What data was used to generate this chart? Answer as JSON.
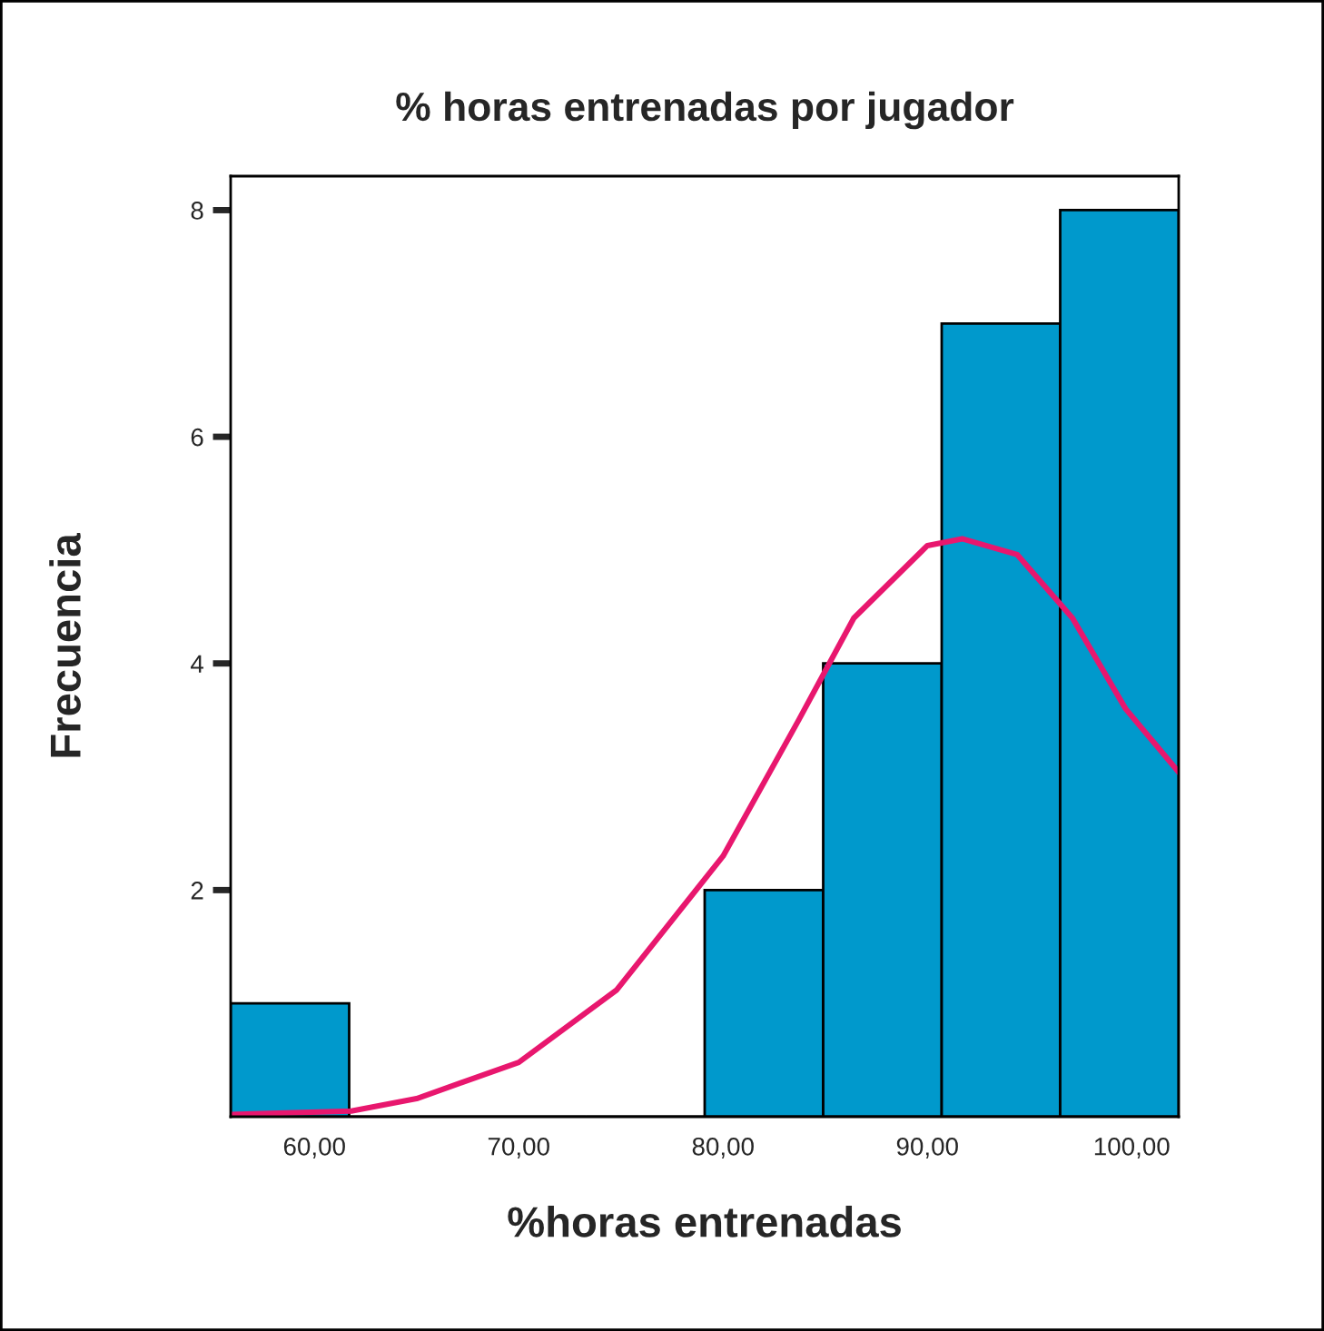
{
  "chart_data": {
    "type": "histogram",
    "title": "% horas entrenadas por jugador",
    "xlabel": "%horas entrenadas",
    "ylabel": "Frecuencia",
    "bins": [
      55.9,
      61.7,
      67.5,
      73.3,
      79.1,
      84.9,
      90.7,
      96.5,
      102.3
    ],
    "values": [
      1,
      0,
      0,
      0,
      2,
      4,
      7,
      8
    ],
    "color": "#0099cc",
    "series": [
      {
        "type": "line",
        "color": "#e8176e",
        "x": [
          55.9,
          61.8,
          65.0,
          70.0,
          74.8,
          80.0,
          83.7,
          86.4,
          90.0,
          91.7,
          94.4,
          97.1,
          99.7,
          102.3
        ],
        "values": [
          0.02,
          0.05,
          0.16,
          0.48,
          1.12,
          2.3,
          3.5,
          4.4,
          5.04,
          5.1,
          4.96,
          4.4,
          3.6,
          3.04
        ]
      }
    ],
    "xlim": [
      55.9,
      102.3
    ],
    "ylim": [
      0,
      8.3
    ],
    "xticks": [
      {
        "value": 60,
        "label": "60,00"
      },
      {
        "value": 70,
        "label": "70,00"
      },
      {
        "value": 80,
        "label": "80,00"
      },
      {
        "value": 90,
        "label": "90,00"
      },
      {
        "value": 100,
        "label": "100,00"
      }
    ],
    "yticks": [
      2,
      4,
      6,
      8
    ],
    "grid": false
  }
}
